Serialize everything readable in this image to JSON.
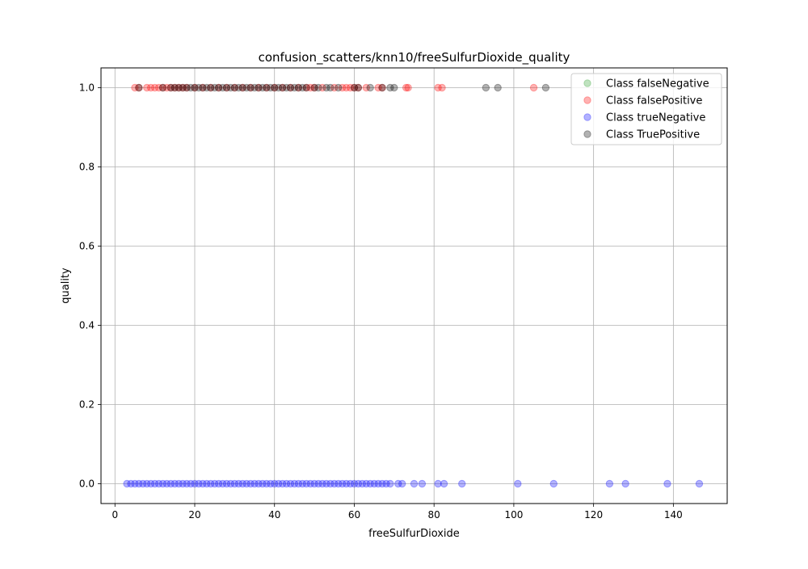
{
  "chart_data": {
    "type": "scatter",
    "title": "confusion_scatters/knn10/freeSulfurDioxide_quality",
    "xlabel": "freeSulfurDioxide",
    "ylabel": "quality",
    "xlim": [
      -3.5,
      153.5
    ],
    "ylim": [
      -0.05,
      1.05
    ],
    "xticks": [
      0,
      20,
      40,
      60,
      80,
      100,
      120,
      140
    ],
    "yticks": [
      0.0,
      0.2,
      0.4,
      0.6,
      0.8,
      1.0
    ],
    "xtick_labels": [
      "0",
      "20",
      "40",
      "60",
      "80",
      "100",
      "120",
      "140"
    ],
    "ytick_labels": [
      "0.0",
      "0.2",
      "0.4",
      "0.6",
      "0.8",
      "1.0"
    ],
    "grid": true,
    "legend_position": "top-right",
    "series": [
      {
        "name": "Class falseNegative",
        "color": "#2ca02c",
        "x": [],
        "y": []
      },
      {
        "name": "Class falsePositive",
        "color": "#ff0000",
        "x": [
          5,
          6,
          8,
          9,
          10,
          11,
          12,
          13,
          14,
          15,
          16,
          17,
          18,
          20,
          22,
          24,
          26,
          28,
          30,
          32,
          34,
          36,
          38,
          40,
          42,
          44,
          46,
          48,
          49,
          50,
          52,
          55,
          57,
          58,
          59,
          60,
          61,
          63,
          66,
          67,
          73,
          73.5,
          81,
          82,
          105
        ],
        "y": [
          1,
          1,
          1,
          1,
          1,
          1,
          1,
          1,
          1,
          1,
          1,
          1,
          1,
          1,
          1,
          1,
          1,
          1,
          1,
          1,
          1,
          1,
          1,
          1,
          1,
          1,
          1,
          1,
          1,
          1,
          1,
          1,
          1,
          1,
          1,
          1,
          1,
          1,
          1,
          1,
          1,
          1,
          1,
          1,
          1
        ]
      },
      {
        "name": "Class trueNegative",
        "color": "#0000ff",
        "x": [
          3,
          4,
          5,
          6,
          7,
          8,
          9,
          10,
          11,
          12,
          13,
          14,
          15,
          16,
          17,
          18,
          19,
          20,
          21,
          22,
          23,
          24,
          25,
          26,
          27,
          28,
          29,
          30,
          31,
          32,
          33,
          34,
          35,
          36,
          37,
          38,
          39,
          40,
          41,
          42,
          43,
          44,
          45,
          46,
          47,
          48,
          49,
          50,
          51,
          52,
          53,
          54,
          55,
          56,
          57,
          58,
          59,
          60,
          61,
          62,
          63,
          64,
          65,
          66,
          67,
          68,
          69,
          71,
          72,
          75,
          77,
          81,
          82.5,
          87,
          101,
          110,
          124,
          128,
          138.5,
          146.5
        ],
        "y": [
          0,
          0,
          0,
          0,
          0,
          0,
          0,
          0,
          0,
          0,
          0,
          0,
          0,
          0,
          0,
          0,
          0,
          0,
          0,
          0,
          0,
          0,
          0,
          0,
          0,
          0,
          0,
          0,
          0,
          0,
          0,
          0,
          0,
          0,
          0,
          0,
          0,
          0,
          0,
          0,
          0,
          0,
          0,
          0,
          0,
          0,
          0,
          0,
          0,
          0,
          0,
          0,
          0,
          0,
          0,
          0,
          0,
          0,
          0,
          0,
          0,
          0,
          0,
          0,
          0,
          0,
          0,
          0,
          0,
          0,
          0,
          0,
          0,
          0,
          0,
          0,
          0,
          0,
          0,
          0
        ]
      },
      {
        "name": "Class TruePositive",
        "color": "#000000",
        "x": [
          6,
          12,
          14,
          15,
          16,
          17,
          18,
          19,
          20,
          21,
          22,
          23,
          24,
          25,
          26,
          27,
          28,
          29,
          30,
          31,
          32,
          33,
          34,
          35,
          36,
          37,
          38,
          39,
          40,
          41,
          42,
          43,
          44,
          45,
          46,
          47,
          48,
          50,
          51,
          53,
          54,
          56,
          60,
          61,
          64,
          67,
          69,
          70,
          93,
          96,
          108
        ],
        "y": [
          1,
          1,
          1,
          1,
          1,
          1,
          1,
          1,
          1,
          1,
          1,
          1,
          1,
          1,
          1,
          1,
          1,
          1,
          1,
          1,
          1,
          1,
          1,
          1,
          1,
          1,
          1,
          1,
          1,
          1,
          1,
          1,
          1,
          1,
          1,
          1,
          1,
          1,
          1,
          1,
          1,
          1,
          1,
          1,
          1,
          1,
          1,
          1,
          1,
          1,
          1
        ]
      }
    ]
  }
}
